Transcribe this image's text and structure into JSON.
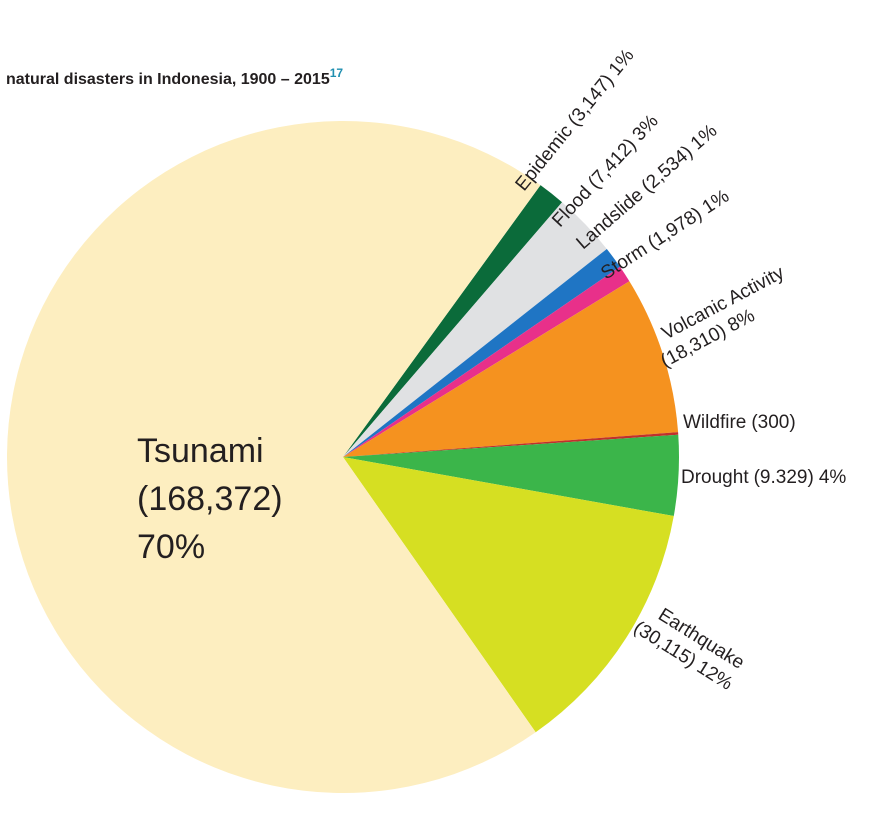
{
  "chart_data": {
    "type": "pie",
    "title": "natural disasters in Indonesia, 1900 – 2015",
    "title_note": "17",
    "categories": [
      "Epidemic",
      "Flood",
      "Landslide",
      "Storm",
      "Volcanic Activity",
      "Wildfire",
      "Drought",
      "Earthquake",
      "Tsunami"
    ],
    "values": [
      3147,
      7412,
      2534,
      1978,
      18310,
      300,
      9329,
      30115,
      168372
    ],
    "value_labels": [
      "(3,147)",
      "(7,412)",
      "(2,534)",
      "(1,978)",
      "(18,310)",
      "(300)",
      "(9.329)",
      "(30,115)",
      "(168,372)"
    ],
    "shares": [
      1,
      3,
      1,
      1,
      8,
      null,
      4,
      12,
      70
    ],
    "share_labels": [
      "1%",
      "3%",
      "1%",
      "1%",
      "8%",
      null,
      "4%",
      "12%",
      "70%"
    ],
    "colors": [
      "#0b6b3a",
      "#e0e1e3",
      "#1f75c4",
      "#e8308a",
      "#f5921f",
      "#c0302c",
      "#3bb54a",
      "#d6df22",
      "#fdeec0"
    ]
  }
}
